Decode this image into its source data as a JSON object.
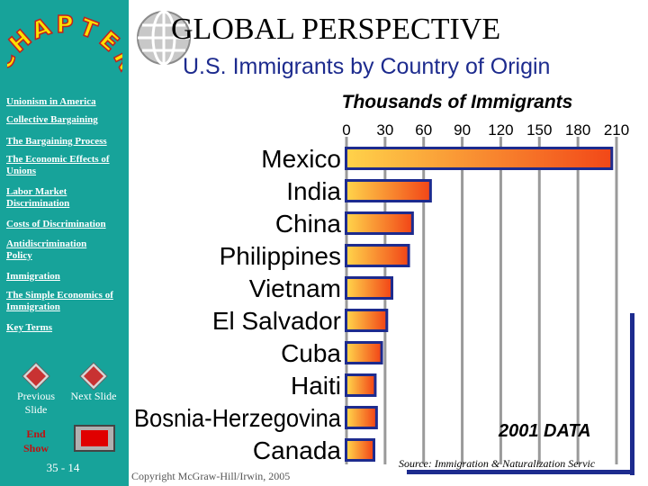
{
  "slide": {
    "chapter_word": "CHAPTER",
    "title": "GLOBAL  PERSPECTIVE",
    "subtitle": "U.S. Immigrants by Country of Origin",
    "data_note": "2001 DATA",
    "source": "Source: Immigration & Naturalization Servic",
    "copyright": "Copyright McGraw-Hill/Irwin, 2005",
    "slide_number": "35 - 14"
  },
  "sidebar": {
    "items": [
      {
        "label": "Unionism in America"
      },
      {
        "label": "Collective Bargaining"
      },
      {
        "label": "The Bargaining Process"
      },
      {
        "label": "The Economic Effects of Unions"
      },
      {
        "label": "Labor Market Discrimination"
      },
      {
        "label": "Costs of Discrimination"
      },
      {
        "label": "Antidiscrimination Policy"
      },
      {
        "label": "Immigration"
      },
      {
        "label": "The Simple Economics of Immigration"
      },
      {
        "label": "Key Terms"
      }
    ],
    "previous_label": "Previous Slide",
    "next_label": "Next Slide",
    "end_label": "End Show"
  },
  "colors": {
    "sidebar": "#17a39a",
    "bar_start": "#ffd24a",
    "bar_end": "#f24818",
    "title_blue": "#1d2b8e"
  },
  "chart_data": {
    "type": "bar",
    "orientation": "horizontal",
    "title": "Thousands of Immigrants",
    "categories": [
      "Mexico",
      "India",
      "China",
      "Philippines",
      "Vietnam",
      "El Salvador",
      "Cuba",
      "Haiti",
      "Bosnia-Herzegovina",
      "Canada"
    ],
    "values": [
      206,
      65,
      51,
      48,
      35,
      31,
      27,
      22,
      23,
      21
    ],
    "xlim": [
      0,
      210
    ],
    "xticks": [
      0,
      30,
      60,
      90,
      120,
      150,
      180,
      210
    ],
    "grid": true,
    "legend": "none"
  }
}
